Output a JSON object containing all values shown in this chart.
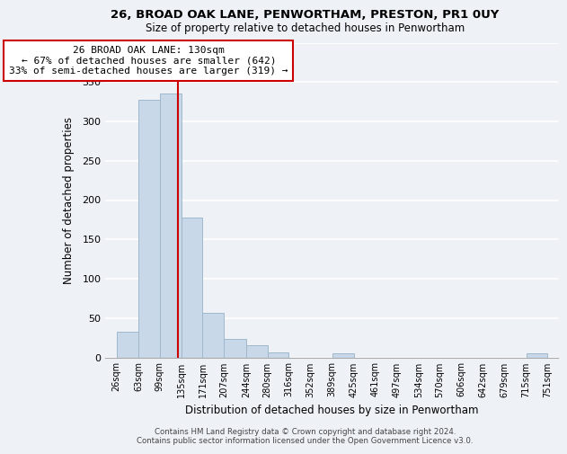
{
  "title": "26, BROAD OAK LANE, PENWORTHAM, PRESTON, PR1 0UY",
  "subtitle": "Size of property relative to detached houses in Penwortham",
  "xlabel": "Distribution of detached houses by size in Penwortham",
  "ylabel": "Number of detached properties",
  "bar_edges": [
    26,
    63,
    99,
    135,
    171,
    207,
    244,
    280,
    316,
    352,
    389,
    425,
    461,
    497,
    534,
    570,
    606,
    642,
    679,
    715,
    751
  ],
  "bar_heights": [
    33,
    328,
    335,
    178,
    57,
    24,
    16,
    6,
    0,
    0,
    5,
    0,
    0,
    0,
    0,
    0,
    0,
    0,
    0,
    5
  ],
  "bar_color": "#c8d8e8",
  "bar_edge_color": "#a0b8cc",
  "property_line_x": 130,
  "ann_line1": "26 BROAD OAK LANE: 130sqm",
  "ann_line2": "← 67% of detached houses are smaller (642)",
  "ann_line3": "33% of semi-detached houses are larger (319) →",
  "annotation_box_color": "#ffffff",
  "annotation_box_edge": "#cc0000",
  "line_color": "#cc0000",
  "ylim": [
    0,
    400
  ],
  "yticks": [
    0,
    50,
    100,
    150,
    200,
    250,
    300,
    350,
    400
  ],
  "tick_labels": [
    "26sqm",
    "63sqm",
    "99sqm",
    "135sqm",
    "171sqm",
    "207sqm",
    "244sqm",
    "280sqm",
    "316sqm",
    "352sqm",
    "389sqm",
    "425sqm",
    "461sqm",
    "497sqm",
    "534sqm",
    "570sqm",
    "606sqm",
    "642sqm",
    "679sqm",
    "715sqm",
    "751sqm"
  ],
  "footer": "Contains HM Land Registry data © Crown copyright and database right 2024.\nContains public sector information licensed under the Open Government Licence v3.0.",
  "bg_color": "#eef2f7",
  "grid_color": "#ffffff"
}
